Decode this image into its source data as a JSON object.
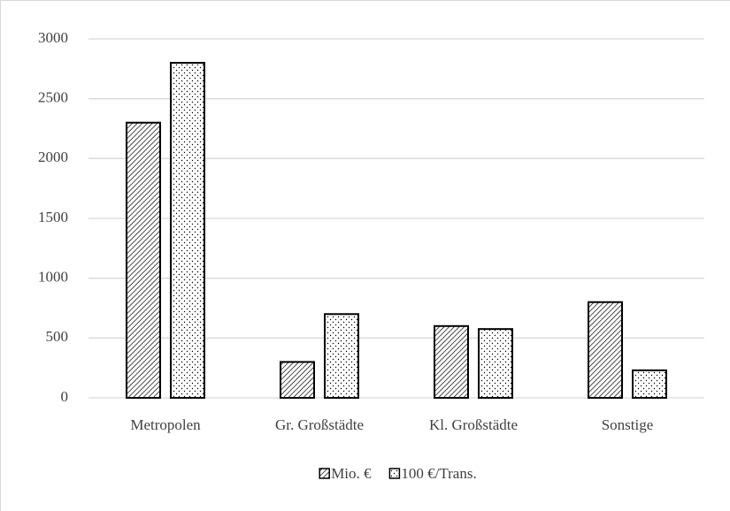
{
  "chart_data": {
    "type": "bar",
    "categories": [
      "Metropolen",
      "Gr. Großstädte",
      "Kl. Großstädte",
      "Sonstige"
    ],
    "series": [
      {
        "name": "Mio. €",
        "color": "#000000",
        "pattern": "hatch",
        "values": [
          2300,
          300,
          600,
          800
        ]
      },
      {
        "name": "100 €/Trans.",
        "color": "#000000",
        "pattern": "dots",
        "values": [
          2800,
          700,
          575,
          230
        ]
      }
    ],
    "ylim": [
      0,
      3000
    ],
    "yticks": [
      0,
      500,
      1000,
      1500,
      2000,
      2500,
      3000
    ],
    "grid": true,
    "legend": "bottom"
  }
}
